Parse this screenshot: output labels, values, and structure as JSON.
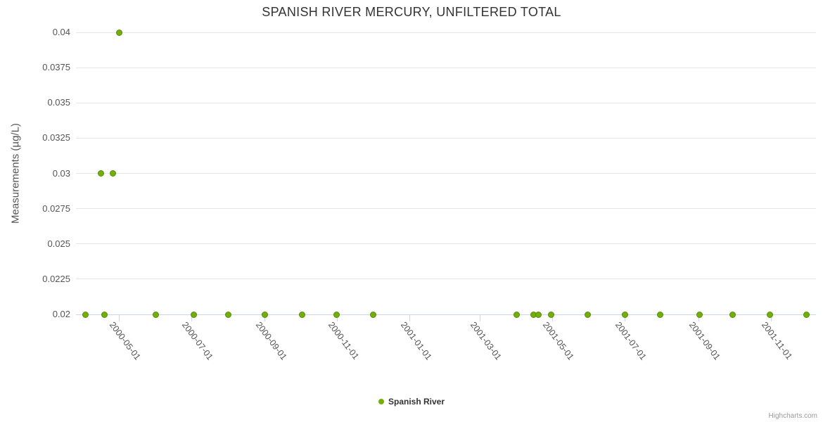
{
  "title": "SPANISH RIVER MERCURY, UNFILTERED TOTAL",
  "credits": "Highcharts.com",
  "colors": {
    "marker_fill": "#72b006",
    "marker_edge": "#568a0c",
    "gridline": "#e6e6e6",
    "axis_line": "#ccd6eb",
    "title_text": "#333333",
    "label_text": "#555555",
    "credits_text": "#999999"
  },
  "legend": {
    "position": "bottom-center",
    "items": [
      {
        "label": "Spanish River",
        "marker": "circle",
        "color": "#72b006"
      }
    ]
  },
  "chart_data": {
    "type": "scatter",
    "title": "SPANISH RIVER MERCURY, UNFILTERED TOTAL",
    "xlabel": "",
    "ylabel": "Measurements (µg/L)",
    "grid": "horizontal",
    "legend_position": "bottom-center",
    "x_axis": {
      "type": "datetime",
      "label_rotation_deg": 53,
      "tick_labels": [
        "2000-05-01",
        "2000-07-01",
        "2000-09-01",
        "2000-11-01",
        "2001-01-01",
        "2001-03-01",
        "2001-05-01",
        "2001-07-01",
        "2001-09-01",
        "2001-11-01"
      ]
    },
    "y_axis": {
      "min": 0.02,
      "max": 0.04,
      "tick_interval": 0.0025,
      "ticks": [
        "0.02",
        "0.0225",
        "0.025",
        "0.0275",
        "0.03",
        "0.0325",
        "0.035",
        "0.0375",
        "0.04"
      ]
    },
    "series": [
      {
        "name": "Spanish River",
        "color": "#72b006",
        "points": [
          {
            "date": "2000-04-03",
            "value": 0.02
          },
          {
            "date": "2000-04-16",
            "value": 0.03
          },
          {
            "date": "2000-04-19",
            "value": 0.02
          },
          {
            "date": "2000-04-26",
            "value": 0.03
          },
          {
            "date": "2000-05-01",
            "value": 0.04
          },
          {
            "date": "2000-06-01",
            "value": 0.02
          },
          {
            "date": "2000-07-03",
            "value": 0.02
          },
          {
            "date": "2000-08-01",
            "value": 0.02
          },
          {
            "date": "2000-09-01",
            "value": 0.02
          },
          {
            "date": "2000-10-02",
            "value": 0.02
          },
          {
            "date": "2000-10-31",
            "value": 0.02
          },
          {
            "date": "2000-12-01",
            "value": 0.02
          },
          {
            "date": "2001-04-01",
            "value": 0.02
          },
          {
            "date": "2001-04-15",
            "value": 0.02
          },
          {
            "date": "2001-04-19",
            "value": 0.02
          },
          {
            "date": "2001-04-30",
            "value": 0.02
          },
          {
            "date": "2001-05-31",
            "value": 0.02
          },
          {
            "date": "2001-07-01",
            "value": 0.02
          },
          {
            "date": "2001-07-31",
            "value": 0.02
          },
          {
            "date": "2001-09-02",
            "value": 0.02
          },
          {
            "date": "2001-09-30",
            "value": 0.02
          },
          {
            "date": "2001-10-31",
            "value": 0.02
          },
          {
            "date": "2001-12-01",
            "value": 0.02
          }
        ]
      }
    ]
  }
}
